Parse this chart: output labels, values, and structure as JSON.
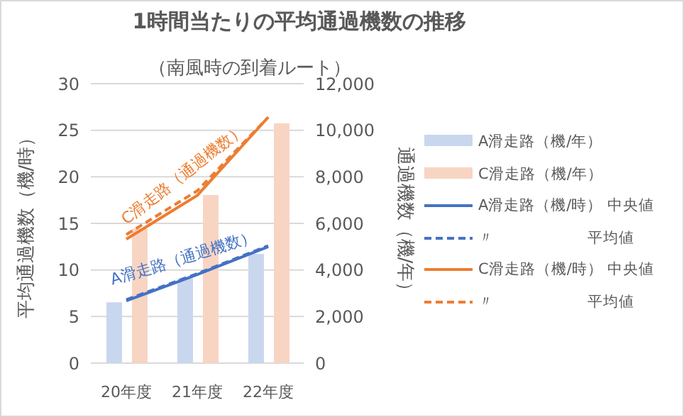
{
  "chart_data": {
    "type": "bar",
    "title": "1時間当たりの平均通過機数の推移",
    "subtitle": "（南風時の到着ルート）",
    "ylabel": "平均通過機数（機/時）",
    "y2label": "通過機数（機/年）",
    "categories": [
      "20年度",
      "21年度",
      "22年度"
    ],
    "series": [
      {
        "name": "A滑走路（機/年）",
        "axis": "y2",
        "color": "#c9d7ee",
        "values": [
          2610,
          3640,
          4690
        ]
      },
      {
        "name": "C滑走路（機/年）",
        "axis": "y2",
        "color": "#f8d5c3",
        "values": [
          5770,
          7220,
          10300
        ]
      },
      {
        "name": "A滑走路（機/時） 中央値",
        "type": "line",
        "color": "#4472c4",
        "line_style": "solid",
        "values": [
          6.7,
          9.5,
          12.5
        ]
      },
      {
        "name": "〃　　　　　　平均値",
        "type": "line",
        "color": "#4472c4",
        "line_style": "dashed",
        "values": [
          6.8,
          9.6,
          12.6
        ]
      },
      {
        "name": "C滑走路（機/時） 中央値",
        "type": "line",
        "color": "#ed7d31",
        "line_style": "solid",
        "values": [
          13.3,
          18.0,
          26.4
        ]
      },
      {
        "name": "〃　　　　　　平均値",
        "type": "line",
        "color": "#ed7d31",
        "line_style": "dashed",
        "values": [
          13.8,
          18.5,
          26.4
        ]
      }
    ],
    "annotations": [
      "A滑走路（通過機数）",
      "C滑走路（通過機数）"
    ],
    "ylim": [
      0,
      30
    ],
    "yticks": [
      0,
      5,
      10,
      15,
      20,
      25,
      30
    ],
    "y2lim": [
      0,
      12000
    ],
    "y2ticks": [
      0,
      {
        "value": 2000,
        "label": "2,000"
      },
      {
        "value": 4000,
        "label": "4,000"
      },
      {
        "value": 6000,
        "label": "6,000"
      },
      {
        "value": 8000,
        "label": "8,000"
      },
      {
        "value": 10000,
        "label": "10,000"
      },
      {
        "value": 12000,
        "label": "12,000"
      }
    ],
    "grid": "y",
    "legend": "right",
    "marker": "none"
  }
}
